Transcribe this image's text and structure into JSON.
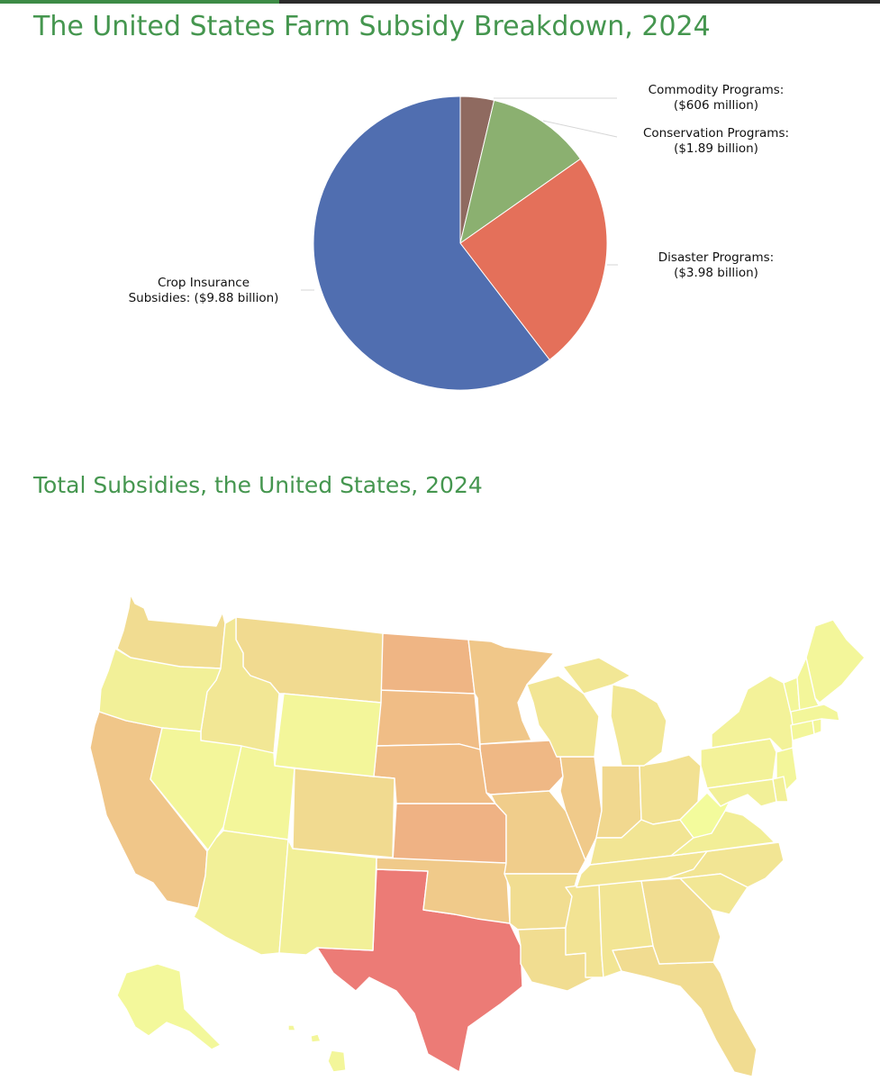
{
  "header": {
    "accent_color": "#3d8b46",
    "bar_color": "#2b2b2b"
  },
  "chart_data": [
    {
      "type": "pie",
      "title": "The United States Farm Subsidy Breakdown, 2024",
      "unit": "USD",
      "slices": [
        {
          "name": "Commodity Programs",
          "value": 0.606,
          "color": "#8f6a60",
          "label_lines": [
            "Commodity Programs:",
            "($606 million)"
          ]
        },
        {
          "name": "Conservation Programs",
          "value": 1.89,
          "color": "#8bb070",
          "label_lines": [
            "Conservation Programs:",
            "($1.89 billion)"
          ]
        },
        {
          "name": "Disaster Programs",
          "value": 3.98,
          "color": "#e4705a",
          "label_lines": [
            "Disaster Programs:",
            "($3.98 billion)"
          ]
        },
        {
          "name": "Crop Insurance Subsidies",
          "value": 9.88,
          "color": "#506eb0",
          "label_lines": [
            "Crop Insurance",
            "Subsidies: ($9.88 billion)"
          ]
        }
      ]
    },
    {
      "type": "heatmap",
      "title": "Total Subsidies, the United States, 2024",
      "color_scale": {
        "low": "#f3fb9c",
        "high": "#ec7b76"
      },
      "regions": [
        {
          "name": "Texas",
          "level": 1.0
        },
        {
          "name": "Kansas",
          "level": 0.62
        },
        {
          "name": "North Dakota",
          "level": 0.6
        },
        {
          "name": "Iowa",
          "level": 0.58
        },
        {
          "name": "South Dakota",
          "level": 0.55
        },
        {
          "name": "Nebraska",
          "level": 0.55
        },
        {
          "name": "California",
          "level": 0.48
        },
        {
          "name": "Minnesota",
          "level": 0.47
        },
        {
          "name": "Illinois",
          "level": 0.45
        },
        {
          "name": "Oklahoma",
          "level": 0.45
        },
        {
          "name": "Missouri",
          "level": 0.42
        },
        {
          "name": "Indiana",
          "level": 0.32
        },
        {
          "name": "Montana",
          "level": 0.3
        },
        {
          "name": "Colorado",
          "level": 0.3
        },
        {
          "name": "Florida",
          "level": 0.28
        },
        {
          "name": "Washington",
          "level": 0.28
        },
        {
          "name": "Arkansas",
          "level": 0.27
        },
        {
          "name": "Georgia",
          "level": 0.27
        },
        {
          "name": "Louisiana",
          "level": 0.27
        },
        {
          "name": "Ohio",
          "level": 0.24
        },
        {
          "name": "Mississippi",
          "level": 0.22
        },
        {
          "name": "Alabama",
          "level": 0.2
        },
        {
          "name": "Kentucky",
          "level": 0.2
        },
        {
          "name": "Tennessee",
          "level": 0.2
        },
        {
          "name": "North Carolina",
          "level": 0.2
        },
        {
          "name": "South Carolina",
          "level": 0.18
        },
        {
          "name": "Wisconsin",
          "level": 0.2
        },
        {
          "name": "Michigan",
          "level": 0.18
        },
        {
          "name": "Idaho",
          "level": 0.18
        },
        {
          "name": "Oregon",
          "level": 0.1
        },
        {
          "name": "Wyoming",
          "level": 0.05
        },
        {
          "name": "Utah",
          "level": 0.05
        },
        {
          "name": "Nevada",
          "level": 0.05
        },
        {
          "name": "Arizona",
          "level": 0.1
        },
        {
          "name": "New Mexico",
          "level": 0.1
        },
        {
          "name": "Virginia",
          "level": 0.12
        },
        {
          "name": "West Virginia",
          "level": 0.0
        },
        {
          "name": "Pennsylvania",
          "level": 0.08
        },
        {
          "name": "New York",
          "level": 0.08
        },
        {
          "name": "Maine",
          "level": 0.05
        },
        {
          "name": "Vermont",
          "level": 0.05
        },
        {
          "name": "New Hampshire",
          "level": 0.05
        },
        {
          "name": "Massachusetts",
          "level": 0.05
        },
        {
          "name": "Connecticut",
          "level": 0.05
        },
        {
          "name": "Rhode Island",
          "level": 0.05
        },
        {
          "name": "New Jersey",
          "level": 0.05
        },
        {
          "name": "Delaware",
          "level": 0.1
        },
        {
          "name": "Maryland",
          "level": 0.1
        },
        {
          "name": "Alaska",
          "level": 0.03
        },
        {
          "name": "Hawaii",
          "level": 0.05
        }
      ]
    }
  ]
}
